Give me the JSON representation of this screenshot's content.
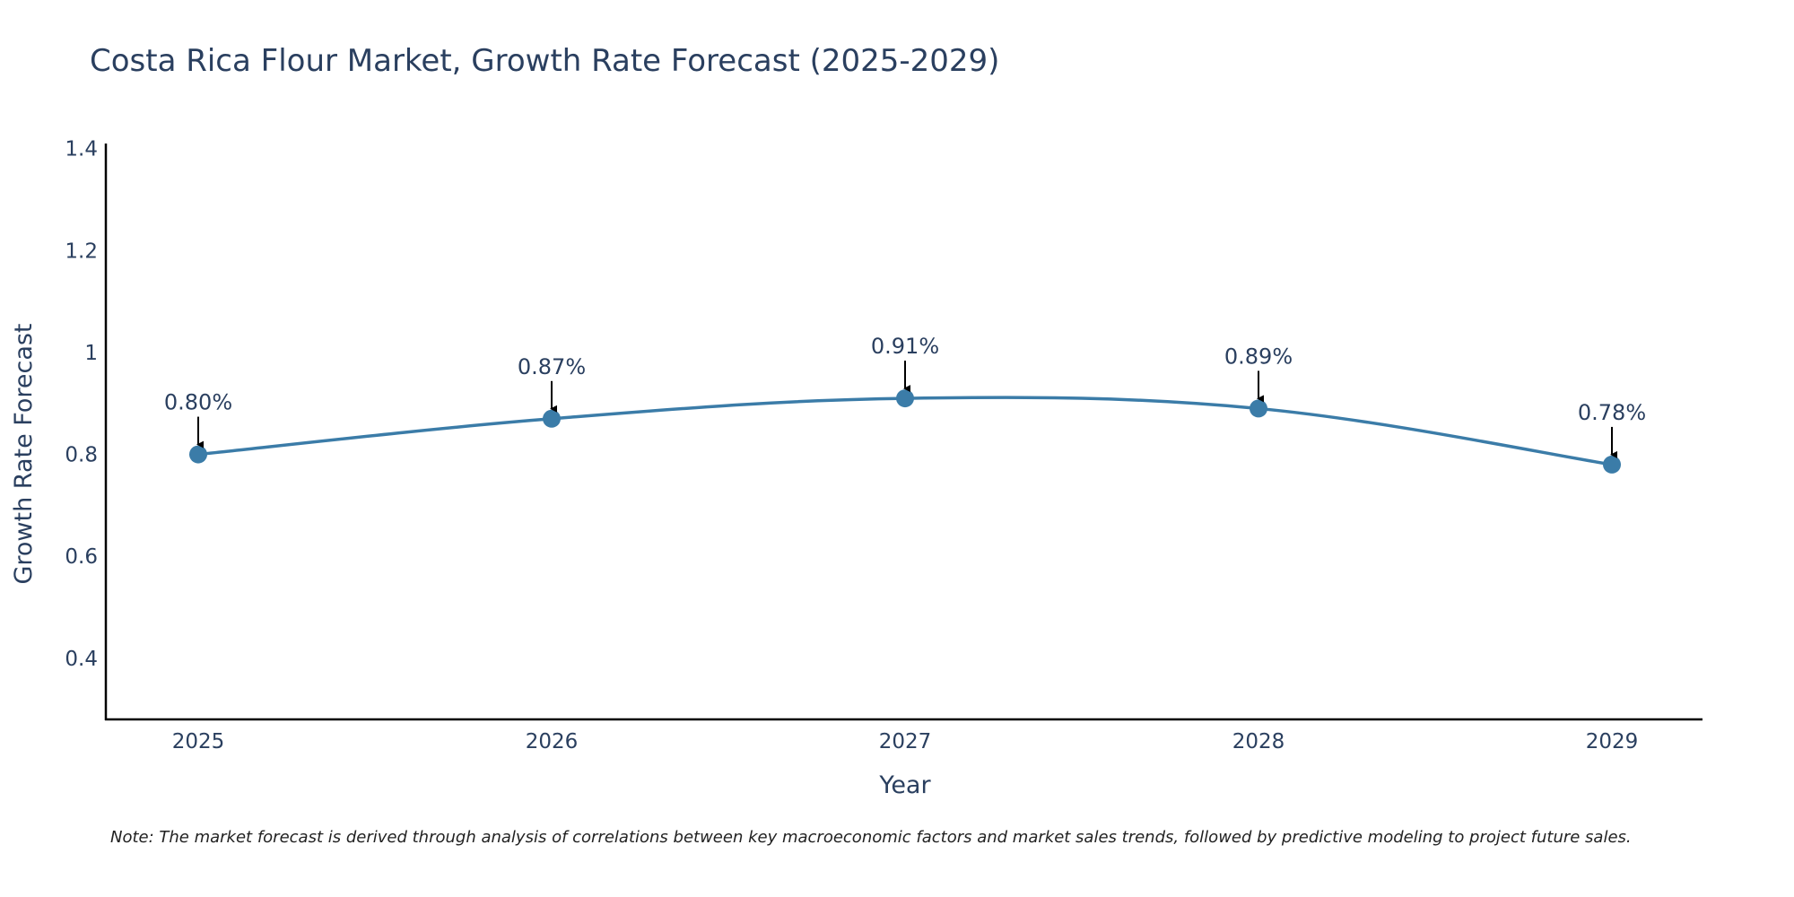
{
  "chart_data": {
    "type": "line",
    "title": "Costa Rica Flour Market, Growth Rate Forecast (2025-2029)",
    "xlabel": "Year",
    "ylabel": "Growth Rate Forecast",
    "categories": [
      "2025",
      "2026",
      "2027",
      "2028",
      "2029"
    ],
    "series": [
      {
        "name": "Growth Rate Forecast",
        "values": [
          0.8,
          0.87,
          0.91,
          0.89,
          0.78
        ],
        "color": "#3b7ca8"
      }
    ],
    "data_labels": [
      "0.80%",
      "0.87%",
      "0.91%",
      "0.89%",
      "0.78%"
    ],
    "y_ticks": [
      0.4,
      0.6,
      0.8,
      1.0,
      1.2,
      1.4
    ],
    "y_tick_labels": [
      "0.4",
      "0.6",
      "0.8",
      "1",
      "1.2",
      "1.4"
    ],
    "ylim": [
      0.28,
      1.41
    ],
    "grid": false,
    "legend": "none"
  },
  "note": "Note: The market forecast is derived through analysis of correlations between key macroeconomic factors and market sales trends, followed by predictive modeling to project future sales."
}
